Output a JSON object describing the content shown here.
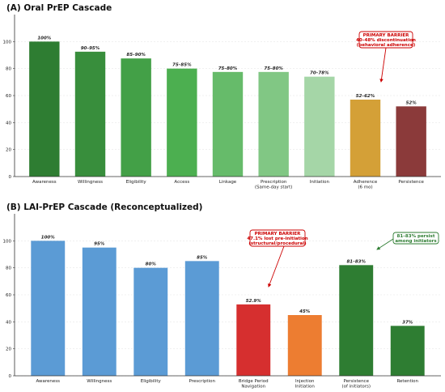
{
  "chart_data": [
    {
      "type": "bar",
      "title": "(A) Oral PrEP Cascade",
      "ylim": [
        0,
        120
      ],
      "yticks": [
        "0",
        "20",
        "40",
        "60",
        "80",
        "100"
      ],
      "grid": true,
      "categories": [
        "Awareness",
        "Willingness",
        "Eligibility",
        "Access",
        "Linkage",
        "Prescription\n(Same-day start)",
        "Initiation",
        "Adherence\n(6 mo)",
        "Persistence"
      ],
      "values": [
        100,
        92.5,
        87.5,
        80,
        77.5,
        77.5,
        74,
        57,
        52
      ],
      "data_labels": [
        "100%",
        "90–95%",
        "85–90%",
        "75–85%",
        "75–80%",
        "75–80%",
        "70–78%",
        "52–62%",
        "52%"
      ],
      "colors": [
        "#2e7d32",
        "#388e3c",
        "#43a047",
        "#4caf50",
        "#66bb6a",
        "#81c784",
        "#a5d6a7",
        "#d4a037",
        "#8b3a3a"
      ],
      "annotations": [
        {
          "lines": [
            "PRIMARY BARRIER",
            "40–48% discontinuation",
            "(behavioral adherence)"
          ],
          "color": "#cc0000",
          "points_to": "Adherence\n(6 mo)"
        }
      ]
    },
    {
      "type": "bar",
      "title": "(B) LAI-PrEP Cascade (Reconceptualized)",
      "ylim": [
        0,
        120
      ],
      "yticks": [
        "0",
        "20",
        "40",
        "60",
        "80",
        "100"
      ],
      "grid": true,
      "categories": [
        "Awareness",
        "Willingness",
        "Eligibility",
        "Prescription",
        "Bridge Period\nNavigation",
        "Injection\nInitiation",
        "Persistence\n(of initiators)",
        "Retention"
      ],
      "values": [
        100,
        95,
        80,
        85,
        52.9,
        45,
        82,
        37
      ],
      "data_labels": [
        "100%",
        "95%",
        "80%",
        "85%",
        "52.9%",
        "45%",
        "81–83%",
        "37%"
      ],
      "label_colors": [
        "#222222",
        "#222222",
        "#222222",
        "#222222",
        "#cc0000",
        "#222222",
        "#222222",
        "#222222"
      ],
      "colors": [
        "#5b9bd5",
        "#5b9bd5",
        "#5b9bd5",
        "#5b9bd5",
        "#d62f2f",
        "#ed7d31",
        "#2e7d32",
        "#2e7d32"
      ],
      "annotations": [
        {
          "lines": [
            "PRIMARY BARRIER",
            "47.1% lost pre-initiation",
            "(structural/procedural)"
          ],
          "color": "#cc0000",
          "points_to": "Bridge Period\nNavigation"
        },
        {
          "lines": [
            "81–83% persist",
            "among initiators"
          ],
          "color": "#2e7d32",
          "points_to": "Persistence\n(of initiators)"
        }
      ]
    }
  ]
}
